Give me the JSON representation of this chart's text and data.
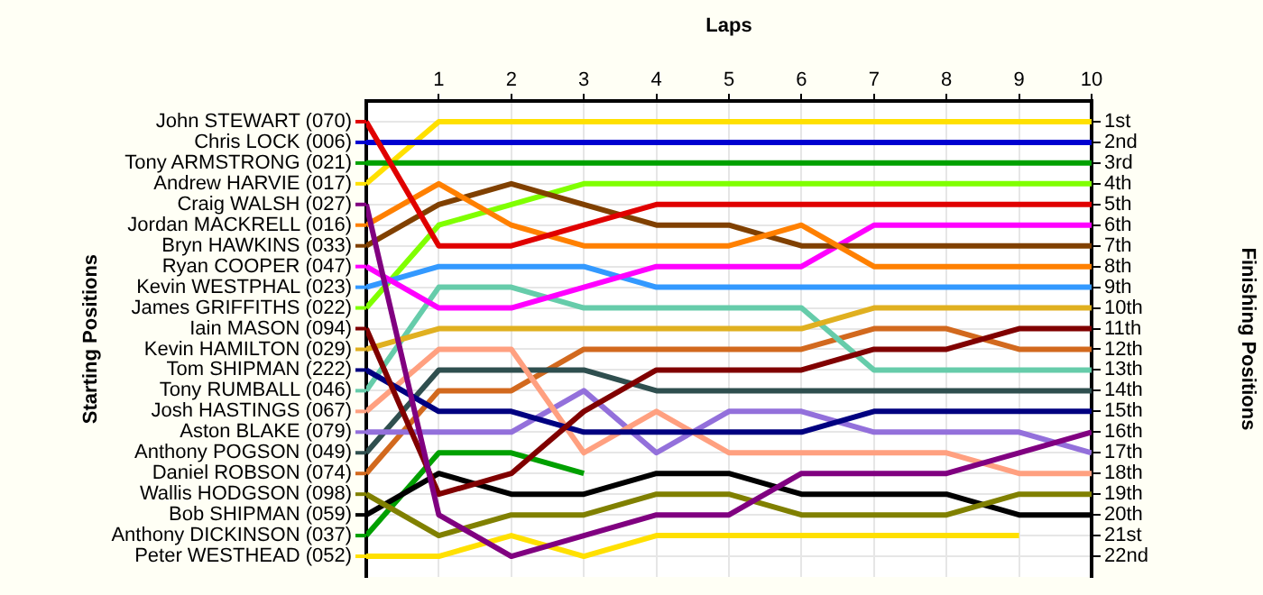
{
  "chart_data": {
    "type": "line",
    "xlabel": "Laps",
    "legend_title": "Starting Positions",
    "y2label": "Finishing Positions",
    "x": [
      0,
      1,
      2,
      3,
      4,
      5,
      6,
      7,
      8,
      9,
      10
    ],
    "xlim": [
      0,
      10
    ],
    "xticks": [
      1,
      2,
      3,
      4,
      5,
      6,
      7,
      8,
      9,
      10
    ],
    "y2lim": [
      23,
      0
    ],
    "y2ticks": [
      {
        "value": 1,
        "label": "1st"
      },
      {
        "value": 2,
        "label": "2nd"
      },
      {
        "value": 3,
        "label": "3rd"
      },
      {
        "value": 4,
        "label": "4th"
      },
      {
        "value": 5,
        "label": "5th"
      },
      {
        "value": 6,
        "label": "6th"
      },
      {
        "value": 7,
        "label": "7th"
      },
      {
        "value": 8,
        "label": "8th"
      },
      {
        "value": 9,
        "label": "9th"
      },
      {
        "value": 10,
        "label": "10th"
      },
      {
        "value": 11,
        "label": "11th"
      },
      {
        "value": 12,
        "label": "12th"
      },
      {
        "value": 13,
        "label": "13th"
      },
      {
        "value": 14,
        "label": "14th"
      },
      {
        "value": 15,
        "label": "15th"
      },
      {
        "value": 16,
        "label": "16th"
      },
      {
        "value": 17,
        "label": "17th"
      },
      {
        "value": 18,
        "label": "18th"
      },
      {
        "value": 19,
        "label": "19th"
      },
      {
        "value": 20,
        "label": "20th"
      },
      {
        "value": 21,
        "label": "21st"
      },
      {
        "value": 22,
        "label": "22nd"
      }
    ],
    "grid": true,
    "legend": "left",
    "series": [
      {
        "name": "John STEWART (070)",
        "color": "#e00000",
        "axis": "y2",
        "values": [
          1,
          7,
          7,
          6,
          5,
          5,
          5,
          5,
          5,
          5,
          5
        ]
      },
      {
        "name": "Chris LOCK (006)",
        "color": "#0000d0",
        "axis": "y2",
        "values": [
          2,
          2,
          2,
          2,
          2,
          2,
          2,
          2,
          2,
          2,
          2
        ]
      },
      {
        "name": "Tony ARMSTRONG (021)",
        "color": "#00a000",
        "axis": "y2",
        "values": [
          3,
          3,
          3,
          3,
          3,
          3,
          3,
          3,
          3,
          3,
          3
        ]
      },
      {
        "name": "Andrew HARVIE (017)",
        "color": "#ffe000",
        "axis": "y2",
        "values": [
          4,
          1,
          1,
          1,
          1,
          1,
          1,
          1,
          1,
          1,
          1
        ]
      },
      {
        "name": "Craig WALSH (027)",
        "color": "#800080",
        "axis": "y2",
        "values": [
          5,
          20,
          22,
          21,
          20,
          20,
          18,
          18,
          18,
          17,
          16
        ]
      },
      {
        "name": "Jordan MACKRELL (016)",
        "color": "#ff8000",
        "axis": "y2",
        "values": [
          6,
          4,
          6,
          7,
          7,
          7,
          6,
          8,
          8,
          8,
          8
        ]
      },
      {
        "name": "Bryn HAWKINS (033)",
        "color": "#804000",
        "axis": "y2",
        "values": [
          7,
          5,
          4,
          5,
          6,
          6,
          7,
          7,
          7,
          7,
          7
        ]
      },
      {
        "name": "Ryan COOPER (047)",
        "color": "#ff00ff",
        "axis": "y2",
        "values": [
          8,
          10,
          10,
          9,
          8,
          8,
          8,
          6,
          6,
          6,
          6
        ]
      },
      {
        "name": "Kevin WESTPHAL (023)",
        "color": "#3399ff",
        "axis": "y2",
        "values": [
          9,
          8,
          8,
          8,
          9,
          9,
          9,
          9,
          9,
          9,
          9
        ]
      },
      {
        "name": "James GRIFFITHS (022)",
        "color": "#80ff00",
        "axis": "y2",
        "values": [
          10,
          6,
          5,
          4,
          4,
          4,
          4,
          4,
          4,
          4,
          4
        ]
      },
      {
        "name": "Iain MASON (094)",
        "color": "#800000",
        "axis": "y2",
        "values": [
          11,
          19,
          18,
          15,
          13,
          13,
          13,
          12,
          12,
          11,
          11
        ]
      },
      {
        "name": "Kevin HAMILTON (029)",
        "color": "#e0b020",
        "axis": "y2",
        "values": [
          12,
          11,
          11,
          11,
          11,
          11,
          11,
          10,
          10,
          10,
          10
        ]
      },
      {
        "name": "Tom SHIPMAN (222)",
        "color": "#000080",
        "axis": "y2",
        "values": [
          13,
          15,
          15,
          16,
          16,
          16,
          16,
          15,
          15,
          15,
          15
        ]
      },
      {
        "name": "Tony RUMBALL (046)",
        "color": "#66ccaa",
        "axis": "y2",
        "values": [
          14,
          9,
          9,
          10,
          10,
          10,
          10,
          13,
          13,
          13,
          13
        ]
      },
      {
        "name": "Josh HASTINGS (067)",
        "color": "#ffa080",
        "axis": "y2",
        "values": [
          15,
          12,
          12,
          17,
          15,
          17,
          17,
          17,
          17,
          18,
          18
        ]
      },
      {
        "name": "Aston BLAKE (079)",
        "color": "#9370db",
        "axis": "y2",
        "values": [
          16,
          16,
          16,
          14,
          17,
          15,
          15,
          16,
          16,
          16,
          17
        ]
      },
      {
        "name": "Anthony POGSON (049)",
        "color": "#2f4f4f",
        "axis": "y2",
        "values": [
          17,
          13,
          13,
          13,
          14,
          14,
          14,
          14,
          14,
          14,
          14
        ]
      },
      {
        "name": "Daniel ROBSON (074)",
        "color": "#d2691e",
        "axis": "y2",
        "values": [
          18,
          14,
          14,
          12,
          12,
          12,
          12,
          11,
          11,
          12,
          12
        ]
      },
      {
        "name": "Wallis HODGSON (098)",
        "color": "#808000",
        "axis": "y2",
        "values": [
          19,
          21,
          20,
          20,
          19,
          19,
          20,
          20,
          20,
          19,
          19
        ]
      },
      {
        "name": "Bob SHIPMAN (059)",
        "color": "#000000",
        "axis": "y2",
        "values": [
          20,
          18,
          19,
          19,
          18,
          18,
          19,
          19,
          19,
          20,
          20
        ]
      },
      {
        "name": "Anthony DICKINSON (037)",
        "color": "#00a000",
        "axis": "y2",
        "values": [
          21,
          17,
          17,
          18,
          null,
          null,
          null,
          null,
          null,
          null,
          null
        ]
      },
      {
        "name": "Peter WESTHEAD (052)",
        "color": "#ffe000",
        "axis": "y2",
        "values": [
          22,
          22,
          21,
          22,
          21,
          21,
          21,
          21,
          21,
          21,
          null
        ]
      }
    ]
  }
}
